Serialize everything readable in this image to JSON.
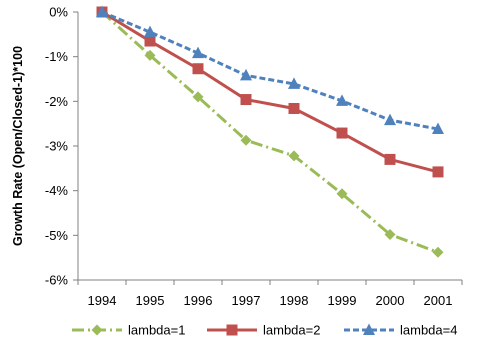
{
  "chart_data": {
    "type": "line",
    "title": "",
    "xlabel": "",
    "ylabel": "Growth Rate (Open/Closed-1)*100",
    "categories": [
      "1994",
      "1995",
      "1996",
      "1997",
      "1998",
      "1999",
      "2000",
      "2001"
    ],
    "ylim": [
      -6,
      0
    ],
    "yticks": [
      "0%",
      "-1%",
      "-2%",
      "-3%",
      "-4%",
      "-5%",
      "-6%"
    ],
    "grid": false,
    "legend_position": "bottom",
    "series": [
      {
        "name": "lambda=1",
        "values": [
          0,
          -0.97,
          -1.9,
          -2.87,
          -3.22,
          -4.07,
          -4.98,
          -5.38
        ],
        "color": "#9BBB59",
        "marker": "diamond",
        "dash": "dash-dot"
      },
      {
        "name": "lambda=2",
        "values": [
          0,
          -0.65,
          -1.27,
          -1.96,
          -2.16,
          -2.71,
          -3.3,
          -3.58
        ],
        "color": "#C0504D",
        "marker": "square",
        "dash": "solid"
      },
      {
        "name": "lambda=4",
        "values": [
          0,
          -0.45,
          -0.92,
          -1.42,
          -1.61,
          -1.99,
          -2.42,
          -2.62
        ],
        "color": "#4F81BD",
        "marker": "triangle",
        "dash": "dashed"
      }
    ]
  }
}
